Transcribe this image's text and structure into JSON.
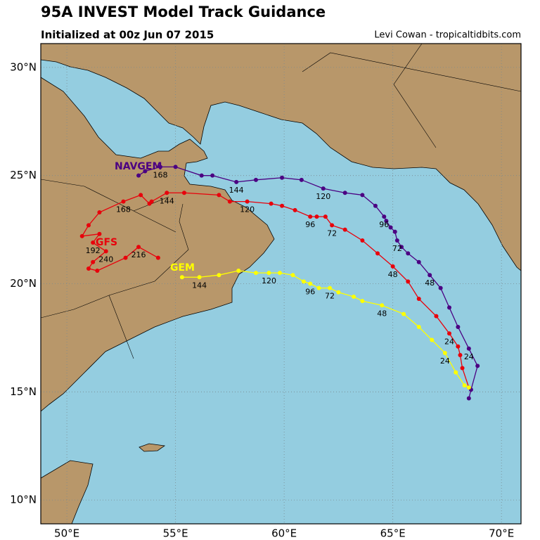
{
  "chart_data": {
    "type": "line",
    "title": "95A INVEST Model Track Guidance",
    "subtitle": "Initialized at 00z Jun 07 2015",
    "credit": "Levi Cowan - tropicaltidbits.com",
    "xlim": [
      48.8,
      70.9
    ],
    "ylim": [
      8.9,
      31.1
    ],
    "xticks": [
      {
        "value": 50,
        "label": "50°E"
      },
      {
        "value": 55,
        "label": "55°E"
      },
      {
        "value": 60,
        "label": "60°E"
      },
      {
        "value": 65,
        "label": "65°E"
      },
      {
        "value": 70,
        "label": "70°E"
      }
    ],
    "yticks": [
      {
        "value": 10,
        "label": "10°N"
      },
      {
        "value": 15,
        "label": "15°N"
      },
      {
        "value": 20,
        "label": "20°N"
      },
      {
        "value": 25,
        "label": "25°N"
      },
      {
        "value": 30,
        "label": "30°N"
      }
    ],
    "grid": true,
    "series": [
      {
        "name": "GFS",
        "color": "#e8000b",
        "x": [
          68.5,
          68.2,
          68.1,
          68.0,
          67.6,
          67.0,
          66.2,
          65.7,
          65.0,
          64.3,
          63.6,
          62.8,
          62.2,
          61.9,
          61.5,
          61.2,
          60.5,
          59.9,
          59.4,
          58.3,
          57.5,
          57.0,
          55.4,
          54.6,
          53.9,
          53.8,
          53.4,
          52.6,
          51.5,
          51.0,
          50.7,
          51.5,
          51.2,
          51.8,
          51.2,
          51.0,
          51.4,
          52.7,
          53.3,
          54.2
        ],
        "y": [
          15.2,
          16.1,
          16.7,
          17.1,
          17.7,
          18.5,
          19.3,
          20.1,
          20.8,
          21.4,
          22.0,
          22.5,
          22.7,
          23.1,
          23.1,
          23.1,
          23.4,
          23.6,
          23.7,
          23.8,
          23.8,
          24.1,
          24.2,
          24.2,
          23.8,
          23.7,
          24.1,
          23.8,
          23.3,
          22.7,
          22.2,
          22.3,
          21.9,
          21.5,
          21.0,
          20.7,
          20.6,
          21.2,
          21.7,
          21.2
        ],
        "point_labels": [
          null,
          null,
          null,
          null,
          "24",
          null,
          null,
          null,
          "48",
          null,
          null,
          null,
          "72",
          null,
          null,
          "96",
          null,
          null,
          null,
          "120",
          null,
          null,
          null,
          "144",
          null,
          null,
          null,
          "168",
          null,
          null,
          null,
          null,
          "192",
          "240",
          null,
          null,
          null,
          null,
          "216",
          null
        ]
      },
      {
        "name": "NAVGEM",
        "color": "#4b0082",
        "x": [
          68.5,
          68.6,
          68.9,
          68.5,
          68.0,
          67.6,
          67.2,
          66.7,
          66.2,
          65.7,
          65.4,
          65.2,
          65.1,
          64.9,
          64.7,
          64.6,
          64.2,
          63.6,
          62.8,
          61.8,
          60.8,
          59.9,
          58.7,
          57.8,
          56.7,
          56.2,
          55.0,
          54.3,
          53.6,
          53.3
        ],
        "y": [
          14.7,
          15.1,
          16.2,
          17.0,
          18.0,
          18.9,
          19.8,
          20.4,
          21.0,
          21.4,
          21.7,
          22.0,
          22.4,
          22.6,
          22.9,
          23.1,
          23.6,
          24.1,
          24.2,
          24.4,
          24.8,
          24.9,
          24.8,
          24.7,
          25.0,
          25.0,
          25.4,
          25.4,
          25.2,
          25.0
        ],
        "point_labels": [
          null,
          null,
          null,
          "24",
          null,
          null,
          null,
          "48",
          null,
          null,
          null,
          "72",
          null,
          null,
          null,
          "96",
          null,
          null,
          null,
          "120",
          null,
          null,
          null,
          "144",
          null,
          null,
          null,
          "168",
          null,
          null
        ]
      },
      {
        "name": "GEM",
        "color": "#ffff00",
        "x": [
          68.5,
          68.3,
          67.9,
          67.4,
          66.8,
          66.2,
          65.5,
          64.5,
          63.6,
          63.2,
          62.5,
          62.1,
          61.6,
          61.2,
          60.9,
          60.4,
          59.8,
          59.3,
          58.7,
          57.9,
          57.0,
          56.1,
          55.3
        ],
        "y": [
          15.2,
          15.3,
          15.9,
          16.8,
          17.4,
          18.0,
          18.6,
          19.0,
          19.2,
          19.4,
          19.6,
          19.8,
          19.8,
          20.0,
          20.1,
          20.4,
          20.5,
          20.5,
          20.5,
          20.6,
          20.4,
          20.3,
          20.3
        ],
        "point_labels": [
          null,
          null,
          null,
          "24",
          null,
          null,
          null,
          "48",
          null,
          null,
          null,
          "72",
          null,
          "96",
          null,
          null,
          null,
          "120",
          null,
          null,
          null,
          "144",
          null
        ]
      }
    ]
  }
}
